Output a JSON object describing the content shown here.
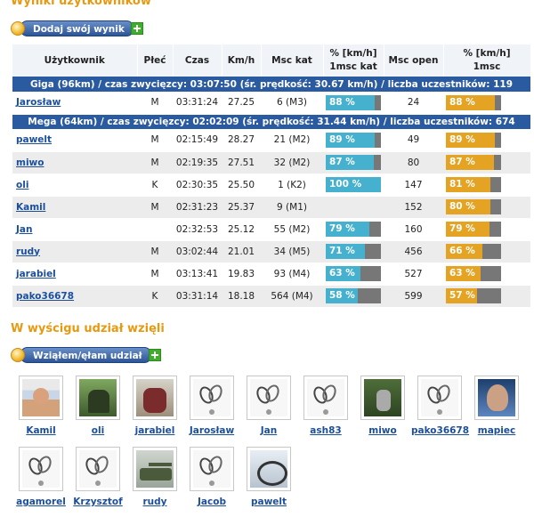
{
  "sections": {
    "results_title": "Wyniki użytkowników",
    "participants_title": "W wyścigu udział wzięli"
  },
  "buttons": {
    "add_result": "Dodaj swój wynik",
    "join": "Wziąłem/ęłam udział"
  },
  "table": {
    "headers": {
      "user": "Użytkownik",
      "sex": "Płeć",
      "time": "Czas",
      "speed": "Km/h",
      "place_cat": "Msc kat",
      "pct_cat_line1": "% [km/h]",
      "pct_cat_line2": "1msc kat",
      "place_open": "Msc open",
      "pct_open_line1": "% [km/h]",
      "pct_open_line2": "1msc"
    },
    "groups": [
      {
        "title": "Giga (96km) / czas zwycięzcy: 03:07:50 (śr. prędkość: 30.67 km/h) / liczba uczestników: 119",
        "rows": [
          {
            "user": "Jarosław",
            "sex": "M",
            "time": "03:31:24",
            "speed": "27.25",
            "place_cat": "6 (M3)",
            "pct_cat": 88,
            "pct_cat_label": "88 %",
            "place_open": "24",
            "pct_open": 88,
            "pct_open_label": "88 %"
          }
        ]
      },
      {
        "title": "Mega (64km) / czas zwycięzcy: 02:02:09 (śr. prędkość: 31.44 km/h) / liczba uczestników: 674",
        "rows": [
          {
            "user": "pawelt",
            "sex": "M",
            "time": "02:15:49",
            "speed": "28.27",
            "place_cat": "21 (M2)",
            "pct_cat": 89,
            "pct_cat_label": "89 %",
            "place_open": "49",
            "pct_open": 89,
            "pct_open_label": "89 %"
          },
          {
            "user": "miwo",
            "sex": "M",
            "time": "02:19:35",
            "speed": "27.51",
            "place_cat": "32 (M2)",
            "pct_cat": 87,
            "pct_cat_label": "87 %",
            "place_open": "80",
            "pct_open": 87,
            "pct_open_label": "87 %"
          },
          {
            "user": "oli",
            "sex": "K",
            "time": "02:30:35",
            "speed": "25.50",
            "place_cat": "1 (K2)",
            "pct_cat": 100,
            "pct_cat_label": "100 %",
            "place_open": "147",
            "pct_open": 81,
            "pct_open_label": "81 %"
          },
          {
            "user": "Kamil",
            "sex": "M",
            "time": "02:31:23",
            "speed": "25.37",
            "place_cat": "9 (M1)",
            "pct_cat": null,
            "pct_cat_label": "",
            "place_open": "152",
            "pct_open": 80,
            "pct_open_label": "80 %"
          },
          {
            "user": "Jan",
            "sex": "",
            "time": "02:32:53",
            "speed": "25.12",
            "place_cat": "55 (M2)",
            "pct_cat": 79,
            "pct_cat_label": "79 %",
            "place_open": "160",
            "pct_open": 79,
            "pct_open_label": "79 %"
          },
          {
            "user": "rudy",
            "sex": "M",
            "time": "03:02:44",
            "speed": "21.01",
            "place_cat": "34 (M5)",
            "pct_cat": 71,
            "pct_cat_label": "71 %",
            "place_open": "456",
            "pct_open": 66,
            "pct_open_label": "66 %"
          },
          {
            "user": "jarabiel",
            "sex": "M",
            "time": "03:13:41",
            "speed": "19.83",
            "place_cat": "93 (M4)",
            "pct_cat": 63,
            "pct_cat_label": "63 %",
            "place_open": "527",
            "pct_open": 63,
            "pct_open_label": "63 %"
          },
          {
            "user": "pako36678",
            "sex": "K",
            "time": "03:31:14",
            "speed": "18.18",
            "place_cat": "564 (M4)",
            "pct_cat": 58,
            "pct_cat_label": "58 %",
            "place_open": "599",
            "pct_open": 57,
            "pct_open_label": "57 %"
          }
        ]
      }
    ]
  },
  "participants": [
    {
      "name": "Kamil",
      "avatar": "photo1"
    },
    {
      "name": "oli",
      "avatar": "photo2"
    },
    {
      "name": "jarabiel",
      "avatar": "photo3"
    },
    {
      "name": "Jarosław",
      "avatar": "logo"
    },
    {
      "name": "Jan",
      "avatar": "logo"
    },
    {
      "name": "ash83",
      "avatar": "logo"
    },
    {
      "name": "miwo",
      "avatar": "photo4"
    },
    {
      "name": "pako36678",
      "avatar": "logo"
    },
    {
      "name": "mapiec",
      "avatar": "photo5"
    },
    {
      "name": "agamorel",
      "avatar": "logo"
    },
    {
      "name": "Krzysztof",
      "avatar": "logo"
    },
    {
      "name": "rudy",
      "avatar": "tank"
    },
    {
      "name": "Jacob",
      "avatar": "logo"
    },
    {
      "name": "pawelt",
      "avatar": "bike"
    }
  ],
  "colors": {
    "accent_orange": "#e69a12",
    "group_header_blue": "#2a5aa0",
    "bar_blue": "#45b1cf",
    "bar_orange": "#e4a323",
    "bar_track": "#777777",
    "link_blue": "#1b4f9c"
  }
}
